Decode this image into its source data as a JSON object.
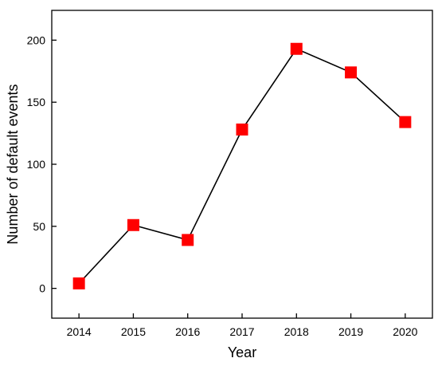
{
  "chart_data": {
    "type": "line",
    "xlabel": "Year",
    "ylabel": "Number of default events",
    "x": [
      2014,
      2015,
      2016,
      2017,
      2018,
      2019,
      2020
    ],
    "values": [
      4,
      51,
      39,
      128,
      193,
      174,
      134
    ],
    "color": "#ff0000",
    "line_color": "#000000",
    "marker": "square",
    "xlim": [
      2013.5,
      2020.5
    ],
    "xticks": [
      2014,
      2015,
      2016,
      2017,
      2018,
      2019,
      2020
    ],
    "ylim": [
      -24,
      224
    ],
    "yticks": [
      0,
      50,
      100,
      150,
      200
    ],
    "grid": false
  }
}
